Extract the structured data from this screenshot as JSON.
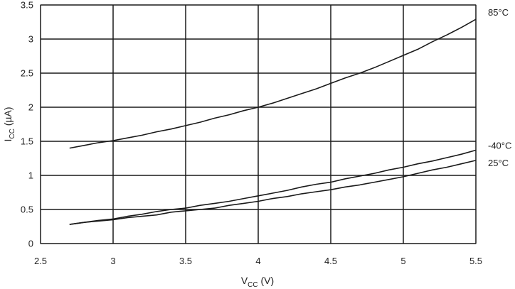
{
  "chart_data": {
    "type": "line",
    "title": "",
    "xlabel_main": "V",
    "xlabel_sub": "CC",
    "xlabel_unit": " (V)",
    "ylabel_main": "I",
    "ylabel_sub": "CC",
    "ylabel_unit": " (µA)",
    "xlim": [
      2.5,
      5.5
    ],
    "ylim": [
      0,
      3.5
    ],
    "x_ticks": [
      "2.5",
      "3",
      "3.5",
      "4",
      "4.5",
      "5",
      "5.5"
    ],
    "y_ticks": [
      "0",
      "0.5",
      "1",
      "1.5",
      "2",
      "2.5",
      "3",
      "3.5"
    ],
    "grid": true,
    "series": [
      {
        "name": "85°C",
        "points": [
          [
            2.7,
            1.4
          ],
          [
            2.8,
            1.44
          ],
          [
            2.9,
            1.48
          ],
          [
            3.0,
            1.51
          ],
          [
            3.1,
            1.55
          ],
          [
            3.2,
            1.59
          ],
          [
            3.3,
            1.64
          ],
          [
            3.4,
            1.68
          ],
          [
            3.5,
            1.73
          ],
          [
            3.6,
            1.78
          ],
          [
            3.7,
            1.84
          ],
          [
            3.8,
            1.89
          ],
          [
            3.9,
            1.95
          ],
          [
            4.0,
            2.0
          ],
          [
            4.1,
            2.06
          ],
          [
            4.2,
            2.13
          ],
          [
            4.3,
            2.2
          ],
          [
            4.4,
            2.27
          ],
          [
            4.5,
            2.35
          ],
          [
            4.6,
            2.43
          ],
          [
            4.7,
            2.5
          ],
          [
            4.8,
            2.58
          ],
          [
            4.9,
            2.67
          ],
          [
            5.0,
            2.76
          ],
          [
            5.1,
            2.85
          ],
          [
            5.2,
            2.96
          ],
          [
            5.3,
            3.06
          ],
          [
            5.4,
            3.17
          ],
          [
            5.5,
            3.29
          ]
        ]
      },
      {
        "name": "-40°C",
        "points": [
          [
            2.7,
            0.28
          ],
          [
            2.8,
            0.31
          ],
          [
            2.9,
            0.34
          ],
          [
            3.0,
            0.36
          ],
          [
            3.1,
            0.4
          ],
          [
            3.2,
            0.43
          ],
          [
            3.3,
            0.47
          ],
          [
            3.4,
            0.5
          ],
          [
            3.5,
            0.52
          ],
          [
            3.6,
            0.56
          ],
          [
            3.7,
            0.59
          ],
          [
            3.8,
            0.62
          ],
          [
            3.9,
            0.66
          ],
          [
            4.0,
            0.7
          ],
          [
            4.1,
            0.74
          ],
          [
            4.2,
            0.78
          ],
          [
            4.3,
            0.83
          ],
          [
            4.4,
            0.87
          ],
          [
            4.5,
            0.9
          ],
          [
            4.6,
            0.95
          ],
          [
            4.7,
            0.99
          ],
          [
            4.8,
            1.03
          ],
          [
            4.9,
            1.08
          ],
          [
            5.0,
            1.12
          ],
          [
            5.1,
            1.17
          ],
          [
            5.2,
            1.21
          ],
          [
            5.3,
            1.26
          ],
          [
            5.4,
            1.31
          ],
          [
            5.5,
            1.37
          ]
        ]
      },
      {
        "name": "25°C",
        "points": [
          [
            2.7,
            0.28
          ],
          [
            2.8,
            0.31
          ],
          [
            2.9,
            0.33
          ],
          [
            3.0,
            0.35
          ],
          [
            3.1,
            0.38
          ],
          [
            3.2,
            0.4
          ],
          [
            3.3,
            0.42
          ],
          [
            3.4,
            0.46
          ],
          [
            3.5,
            0.48
          ],
          [
            3.6,
            0.5
          ],
          [
            3.7,
            0.52
          ],
          [
            3.8,
            0.56
          ],
          [
            3.9,
            0.59
          ],
          [
            4.0,
            0.62
          ],
          [
            4.1,
            0.66
          ],
          [
            4.2,
            0.69
          ],
          [
            4.3,
            0.73
          ],
          [
            4.4,
            0.76
          ],
          [
            4.5,
            0.79
          ],
          [
            4.6,
            0.83
          ],
          [
            4.7,
            0.86
          ],
          [
            4.8,
            0.9
          ],
          [
            4.9,
            0.94
          ],
          [
            5.0,
            0.98
          ],
          [
            5.1,
            1.03
          ],
          [
            5.2,
            1.08
          ],
          [
            5.3,
            1.12
          ],
          [
            5.4,
            1.17
          ],
          [
            5.5,
            1.22
          ]
        ]
      }
    ]
  }
}
